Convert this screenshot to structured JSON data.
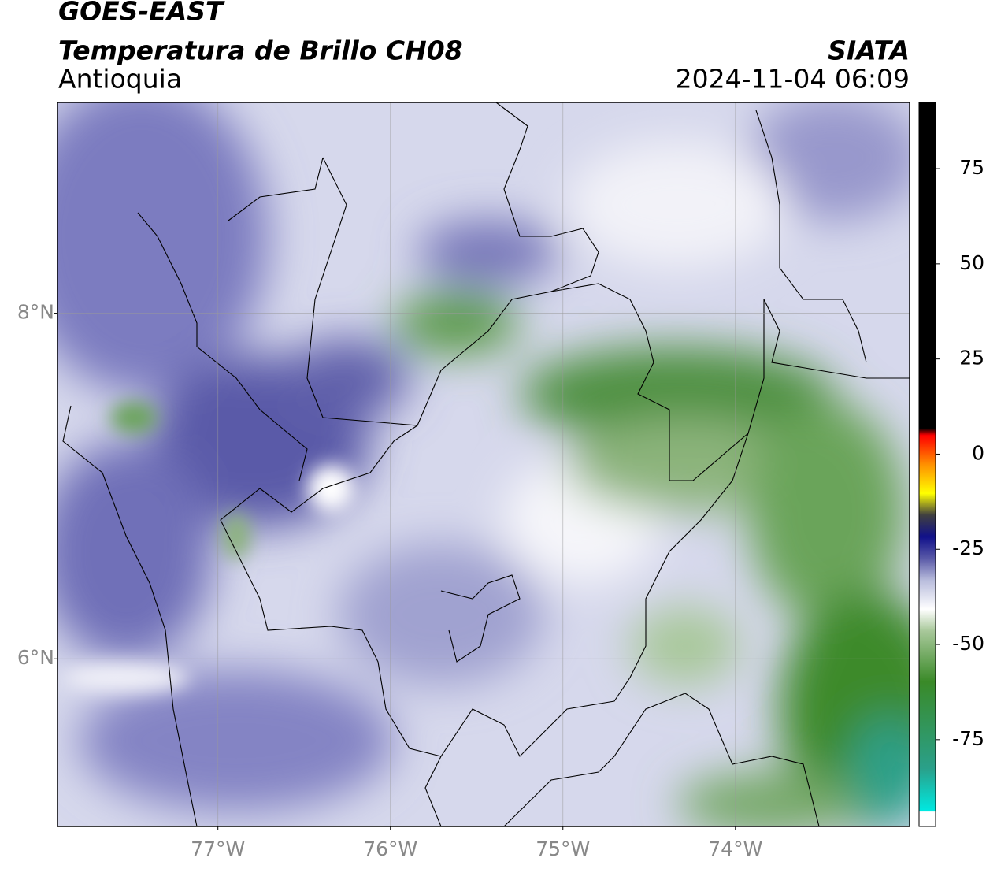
{
  "header": {
    "title": "GOES-EAST",
    "subtitle": "Temperatura de Brillo CH08",
    "region": "Antioquia",
    "source": "SIATA",
    "timestamp": "2024-11-04 06:09"
  },
  "map": {
    "xlim": [
      -77.93,
      -72.99
    ],
    "ylim": [
      5.03,
      9.22
    ],
    "xticks": [
      {
        "value": -77,
        "label": "77°W"
      },
      {
        "value": -76,
        "label": "76°W"
      },
      {
        "value": -75,
        "label": "75°W"
      },
      {
        "value": -74,
        "label": "74°W"
      }
    ],
    "yticks": [
      {
        "value": 8,
        "label": "8°N"
      },
      {
        "value": 6,
        "label": "6°N"
      }
    ],
    "grid": true
  },
  "colorbar": {
    "lim": [
      -97.8,
      92.4
    ],
    "ticks": [
      75,
      50,
      25,
      0,
      -25,
      -50,
      -75
    ]
  }
}
